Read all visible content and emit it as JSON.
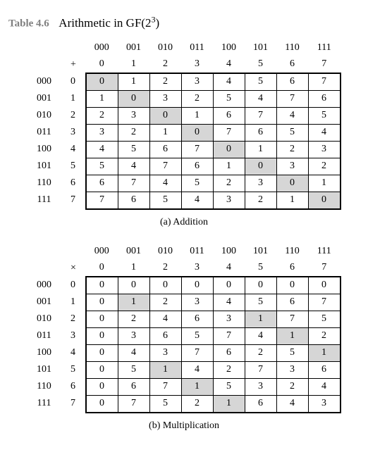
{
  "title": {
    "label": "Table 4.6",
    "text_prefix": "Arithmetic in GF(2",
    "text_exp": "3",
    "text_suffix": ")"
  },
  "bin_labels": [
    "000",
    "001",
    "010",
    "011",
    "100",
    "101",
    "110",
    "111"
  ],
  "dec_labels": [
    "0",
    "1",
    "2",
    "3",
    "4",
    "5",
    "6",
    "7"
  ],
  "addition": {
    "symbol": "+",
    "caption": "(a) Addition",
    "rows": [
      [
        "0",
        "1",
        "2",
        "3",
        "4",
        "5",
        "6",
        "7"
      ],
      [
        "1",
        "0",
        "3",
        "2",
        "5",
        "4",
        "7",
        "6"
      ],
      [
        "2",
        "3",
        "0",
        "1",
        "6",
        "7",
        "4",
        "5"
      ],
      [
        "3",
        "2",
        "1",
        "0",
        "7",
        "6",
        "5",
        "4"
      ],
      [
        "4",
        "5",
        "6",
        "7",
        "0",
        "1",
        "2",
        "3"
      ],
      [
        "5",
        "4",
        "7",
        "6",
        "1",
        "0",
        "3",
        "2"
      ],
      [
        "6",
        "7",
        "4",
        "5",
        "2",
        "3",
        "0",
        "1"
      ],
      [
        "7",
        "6",
        "5",
        "4",
        "3",
        "2",
        "1",
        "0"
      ]
    ],
    "shaded": [
      [
        0,
        0
      ],
      [
        1,
        1
      ],
      [
        2,
        2
      ],
      [
        3,
        3
      ],
      [
        4,
        4
      ],
      [
        5,
        5
      ],
      [
        6,
        6
      ],
      [
        7,
        7
      ]
    ]
  },
  "multiplication": {
    "symbol": "×",
    "caption": "(b) Multiplication",
    "rows": [
      [
        "0",
        "0",
        "0",
        "0",
        "0",
        "0",
        "0",
        "0"
      ],
      [
        "0",
        "1",
        "2",
        "3",
        "4",
        "5",
        "6",
        "7"
      ],
      [
        "0",
        "2",
        "4",
        "6",
        "3",
        "1",
        "7",
        "5"
      ],
      [
        "0",
        "3",
        "6",
        "5",
        "7",
        "4",
        "1",
        "2"
      ],
      [
        "0",
        "4",
        "3",
        "7",
        "6",
        "2",
        "5",
        "1"
      ],
      [
        "0",
        "5",
        "1",
        "4",
        "2",
        "7",
        "3",
        "6"
      ],
      [
        "0",
        "6",
        "7",
        "1",
        "5",
        "3",
        "2",
        "4"
      ],
      [
        "0",
        "7",
        "5",
        "2",
        "1",
        "6",
        "4",
        "3"
      ]
    ],
    "shaded": [
      [
        1,
        1
      ],
      [
        2,
        5
      ],
      [
        3,
        6
      ],
      [
        4,
        7
      ],
      [
        5,
        2
      ],
      [
        6,
        3
      ],
      [
        7,
        4
      ]
    ]
  },
  "style": {
    "shaded_color": "#d6d6d6",
    "border_color": "#000000",
    "label_color": "#808080",
    "text_color": "#000000",
    "bg_color": "#ffffff",
    "title_fontsize_pt": 13,
    "cell_fontsize_pt": 11
  }
}
